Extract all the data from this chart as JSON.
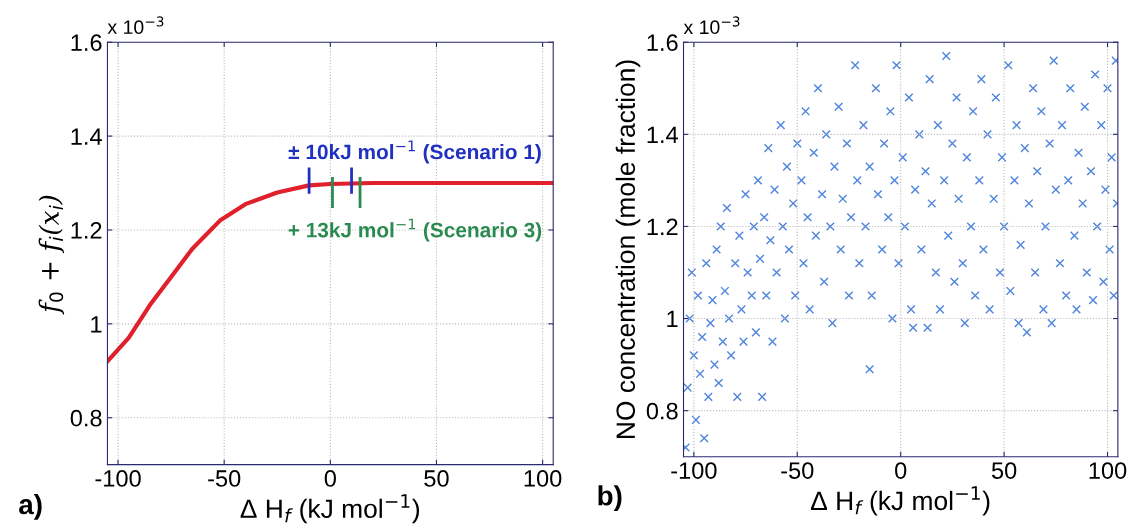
{
  "chart_data": [
    {
      "type": "line",
      "xlabel": "Δ H$_{f}$ (kJ mol$^{−1}$)",
      "ylabel": "f$_{0}$ + f$_{i}$(x$_{i}$)",
      "xlim": [
        -105,
        105
      ],
      "ylim": [
        0.7,
        1.6
      ],
      "xticks": [
        -100,
        -50,
        0,
        50,
        100
      ],
      "yticks": [
        0.8,
        1,
        1.2,
        1.4,
        1.6
      ],
      "grid": true,
      "marker": "none",
      "line_style": "solid",
      "series": [
        {
          "color": "#e0202a",
          "x": [
            -105,
            -95,
            -85,
            -75,
            -65,
            -52,
            -40,
            -25,
            -10,
            0,
            20,
            60,
            105
          ],
          "values": [
            0.92,
            0.97,
            1.04,
            1.1,
            1.16,
            1.22,
            1.255,
            1.28,
            1.295,
            1.298,
            1.3,
            1.3,
            1.3
          ]
        },
        {
          "color": "#2030c0",
          "x": [
            -10,
            -10,
            0,
            10,
            10
          ],
          "values": [
            1.28,
            1.33,
            null,
            1.28,
            1.33
          ]
        },
        {
          "color": "#2a8a50",
          "x": [
            1,
            1,
            7,
            14,
            14
          ],
          "values": [
            1.25,
            1.31,
            null,
            1.25,
            1.31
          ]
        }
      ],
      "annotations": [
        "x 10$^{−3}$",
        "a)",
        "± 10kJ mol$^{−1}$ (Scenario 1)",
        "+ 13kJ mol$^{−1}$ (Scenario 3)"
      ]
    },
    {
      "type": "scatter",
      "xlabel": "Δ H$_{f}$ (kJ mol$^{−1}$)",
      "ylabel": "NO concentration (mole fraction)",
      "xlim": [
        -105,
        105
      ],
      "ylim": [
        0.7,
        1.6
      ],
      "xticks": [
        -100,
        -50,
        0,
        50,
        100
      ],
      "yticks": [
        0.8,
        1,
        1.2,
        1.4,
        1.6
      ],
      "grid": true,
      "marker": "cross",
      "series": [
        {
          "color": "#2f6fd6",
          "x": [
            -104,
            -103,
            -102,
            -101,
            -100,
            -99,
            -98,
            -97,
            -96,
            -95,
            -94,
            -93,
            -92,
            -91,
            -90,
            -89,
            -88,
            -87,
            -86,
            -85,
            -84,
            -83,
            -82,
            -80,
            -79,
            -78,
            -77,
            -76,
            -75,
            -74,
            -72,
            -71,
            -70,
            -69,
            -68,
            -67,
            -66,
            -65,
            -64,
            -63,
            -62,
            -61,
            -60,
            -58,
            -57,
            -56,
            -55,
            -54,
            -52,
            -51,
            -50,
            -48,
            -47,
            -46,
            -45,
            -44,
            -42,
            -41,
            -40,
            -38,
            -37,
            -36,
            -34,
            -33,
            -32,
            -30,
            -29,
            -28,
            -26,
            -25,
            -24,
            -22,
            -21,
            -20,
            -15,
            -18,
            -17,
            -15,
            -14,
            -12,
            -11,
            -9,
            -8,
            -6,
            -5,
            -4,
            -3,
            -2,
            -1,
            1,
            2,
            4,
            5,
            6,
            7,
            9,
            10,
            12,
            13,
            14,
            15,
            17,
            18,
            19,
            21,
            22,
            23,
            25,
            26,
            27,
            28,
            30,
            31,
            32,
            34,
            35,
            36,
            38,
            39,
            40,
            42,
            43,
            45,
            46,
            48,
            49,
            50,
            52,
            53,
            55,
            56,
            57,
            58,
            60,
            61,
            62,
            64,
            65,
            66,
            68,
            69,
            70,
            72,
            73,
            74,
            75,
            77,
            78,
            80,
            81,
            82,
            84,
            85,
            86,
            88,
            89,
            90,
            92,
            93,
            94,
            95,
            97,
            98,
            99,
            100,
            101,
            102,
            103,
            104,
            104.5
          ],
          "values": [
            0.72,
            0.85,
            1.0,
            1.1,
            0.92,
            0.78,
            1.05,
            0.88,
            0.96,
            0.74,
            1.12,
            0.83,
            0.99,
            1.04,
            0.9,
            1.15,
            0.86,
            1.2,
            0.95,
            1.06,
            1.24,
            1.0,
            0.92,
            1.12,
            0.83,
            1.18,
            1.02,
            0.95,
            1.27,
            1.1,
            1.05,
            1.2,
            0.97,
            1.3,
            1.13,
            0.83,
            1.22,
            1.05,
            1.37,
            1.17,
            0.95,
            1.28,
            1.1,
            1.42,
            1.2,
            1.0,
            1.33,
            1.15,
            1.25,
            1.05,
            1.38,
            1.3,
            1.12,
            1.45,
            1.22,
            1.02,
            1.36,
            1.18,
            1.5,
            1.27,
            1.08,
            1.4,
            1.2,
            0.99,
            1.33,
            1.46,
            1.15,
            1.26,
            1.38,
            1.05,
            1.22,
            1.55,
            1.3,
            1.12,
            0.89,
            1.42,
            1.2,
            1.33,
            1.05,
            1.5,
            1.27,
            1.15,
            1.38,
            1.22,
            1.45,
            1.0,
            1.3,
            1.55,
            1.12,
            1.35,
            1.2,
            1.48,
            1.02,
            0.98,
            1.28,
            1.4,
            1.15,
            1.32,
            0.98,
            1.52,
            1.25,
            1.1,
            1.42,
            1.02,
            1.3,
            1.57,
            1.18,
            1.38,
            1.08,
            1.48,
            1.26,
            1.12,
            0.99,
            1.35,
            1.2,
            1.45,
            1.05,
            1.3,
            1.52,
            1.15,
            1.4,
            1.02,
            1.26,
            1.48,
            1.1,
            1.35,
            1.2,
            1.55,
            1.06,
            1.3,
            1.42,
            0.99,
            1.16,
            1.37,
            0.97,
            1.25,
            1.5,
            1.1,
            1.32,
            1.45,
            1.02,
            1.2,
            1.38,
            0.99,
            1.56,
            1.28,
            1.12,
            1.42,
            1.05,
            1.3,
            1.5,
            1.18,
            1.02,
            1.36,
            1.25,
            1.46,
            1.1,
            1.32,
            1.04,
            1.53,
            1.2,
            1.42,
            1.08,
            1.28,
            1.5,
            1.15,
            1.35,
            1.05,
            1.56,
            1.25
          ]
        }
      ],
      "annotations": [
        "x 10$^{−3}$",
        "b)"
      ]
    }
  ]
}
